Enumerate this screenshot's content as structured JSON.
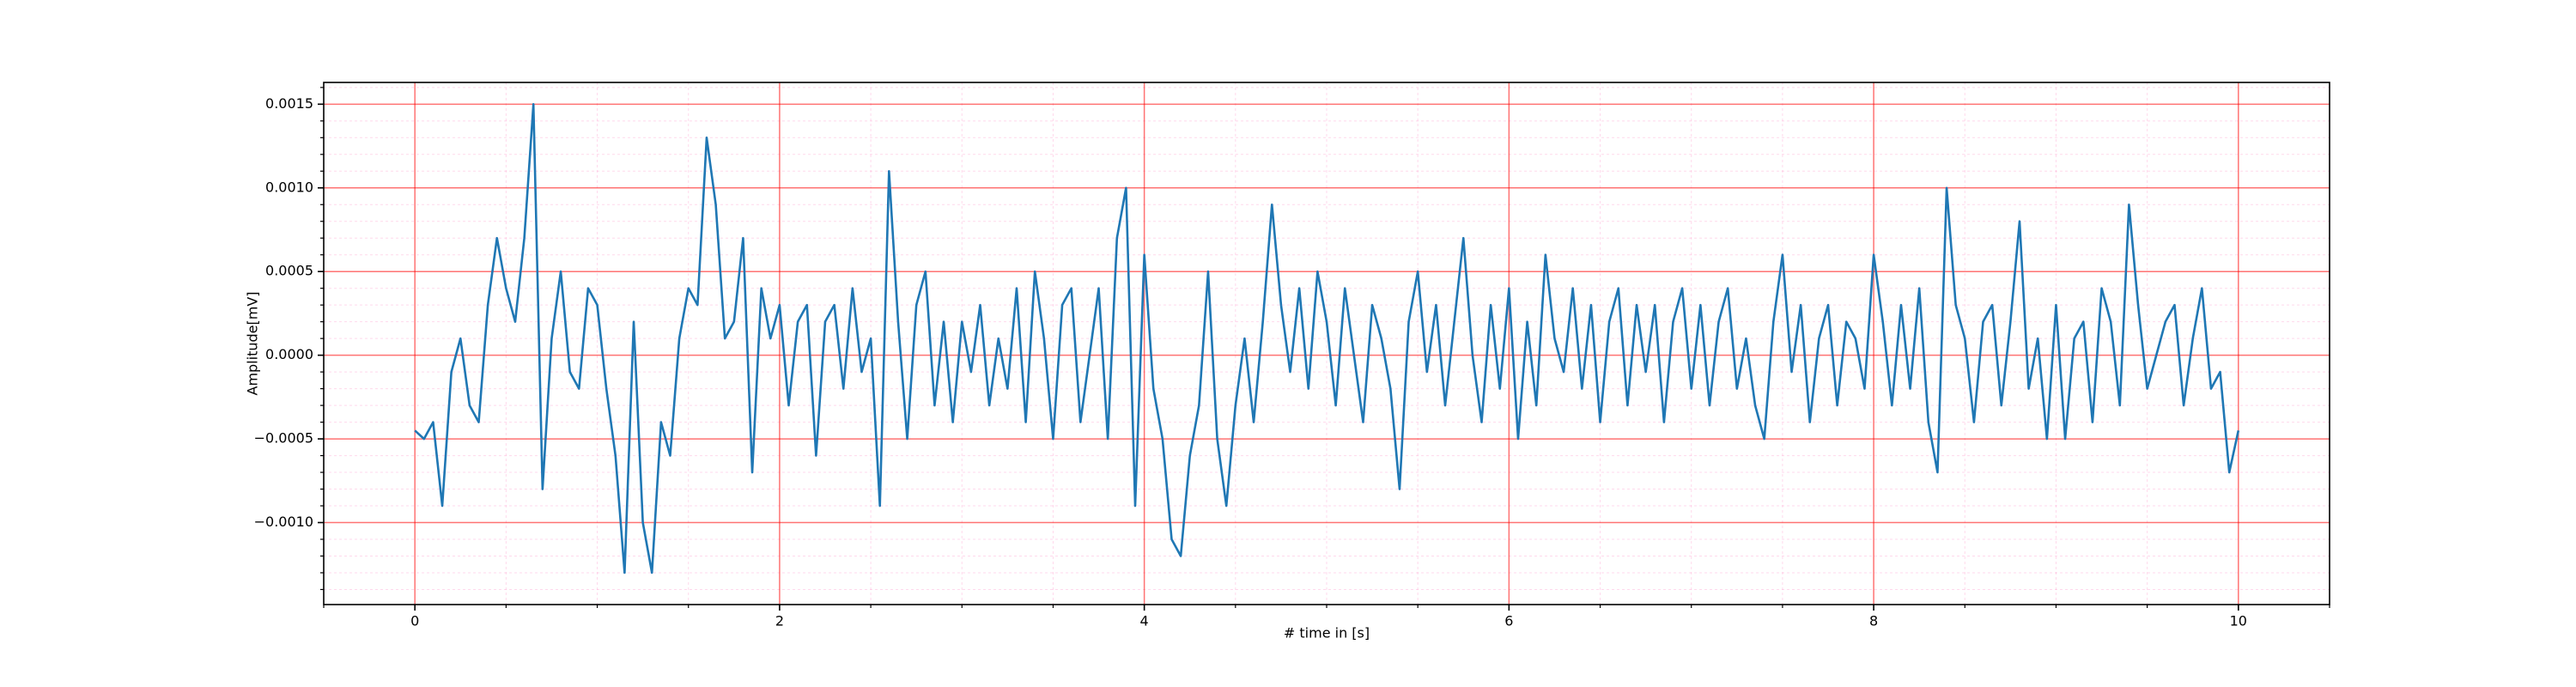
{
  "chart_data": {
    "type": "line",
    "x_label": "# time in [s]",
    "y_label": "Amplitude[mV]",
    "xlim": [
      -0.5,
      10.5
    ],
    "xticks": [
      0,
      2,
      4,
      6,
      8,
      10
    ],
    "xminor_ticks": [
      -0.5,
      0.5,
      1,
      1.5,
      2.5,
      3,
      3.5,
      4.5,
      5,
      5.5,
      6.5,
      7,
      7.5,
      8.5,
      9,
      9.5,
      10.5
    ],
    "ylim": [
      -0.00149,
      0.00163
    ],
    "yticks": [
      {
        "value": -0.001,
        "label": "−0.0010"
      },
      {
        "value": -0.0005,
        "label": "−0.0005"
      },
      {
        "value": 0,
        "label": "0.0000"
      },
      {
        "value": 0.0005,
        "label": "0.0005"
      },
      {
        "value": 0.001,
        "label": "0.0010"
      },
      {
        "value": 0.0015,
        "label": "0.0015"
      }
    ],
    "yminor_ticks": [
      -0.0014,
      -0.0013,
      -0.0012,
      -0.0011,
      -0.0009,
      -0.0008,
      -0.0007,
      -0.0006,
      -0.0004,
      -0.0003,
      -0.0002,
      -0.0001,
      0.0001,
      0.0002,
      0.0003,
      0.0004,
      0.0006,
      0.0007,
      0.0008,
      0.0009,
      0.0011,
      0.0012,
      0.0013,
      0.0014,
      0.0016
    ],
    "grid": true,
    "grid_color": "#ff0000",
    "minor_grid_color": "#ff69b4",
    "x": [
      0,
      0.05,
      0.1,
      0.15,
      0.2,
      0.25,
      0.3,
      0.35,
      0.4,
      0.45,
      0.5,
      0.55,
      0.6,
      0.65,
      0.7,
      0.75,
      0.8,
      0.85,
      0.9,
      0.95,
      1,
      1.05,
      1.1,
      1.15,
      1.2,
      1.25,
      1.3,
      1.35,
      1.4,
      1.45,
      1.5,
      1.55,
      1.6,
      1.65,
      1.7,
      1.75,
      1.8,
      1.85,
      1.9,
      1.95,
      2,
      2.05,
      2.1,
      2.15,
      2.2,
      2.25,
      2.3,
      2.35,
      2.4,
      2.45,
      2.5,
      2.55,
      2.6,
      2.65,
      2.7,
      2.75,
      2.8,
      2.85,
      2.9,
      2.95,
      3,
      3.05,
      3.1,
      3.15,
      3.2,
      3.25,
      3.3,
      3.35,
      3.4,
      3.45,
      3.5,
      3.55,
      3.6,
      3.65,
      3.7,
      3.75,
      3.8,
      3.85,
      3.9,
      3.95,
      4,
      4.05,
      4.1,
      4.15,
      4.2,
      4.25,
      4.3,
      4.35,
      4.4,
      4.45,
      4.5,
      4.55,
      4.6,
      4.65,
      4.7,
      4.75,
      4.8,
      4.85,
      4.9,
      4.95,
      5,
      5.05,
      5.1,
      5.15,
      5.2,
      5.25,
      5.3,
      5.35,
      5.4,
      5.45,
      5.5,
      5.55,
      5.6,
      5.65,
      5.7,
      5.75,
      5.8,
      5.85,
      5.9,
      5.95,
      6,
      6.05,
      6.1,
      6.15,
      6.2,
      6.25,
      6.3,
      6.35,
      6.4,
      6.45,
      6.5,
      6.55,
      6.6,
      6.65,
      6.7,
      6.75,
      6.8,
      6.85,
      6.9,
      6.95,
      7,
      7.05,
      7.1,
      7.15,
      7.2,
      7.25,
      7.3,
      7.35,
      7.4,
      7.45,
      7.5,
      7.55,
      7.6,
      7.65,
      7.7,
      7.75,
      7.8,
      7.85,
      7.9,
      7.95,
      8,
      8.05,
      8.1,
      8.15,
      8.2,
      8.25,
      8.3,
      8.35,
      8.4,
      8.45,
      8.5,
      8.55,
      8.6,
      8.65,
      8.7,
      8.75,
      8.8,
      8.85,
      8.9,
      8.95,
      9,
      9.05,
      9.1,
      9.15,
      9.2,
      9.25,
      9.3,
      9.35,
      9.4,
      9.45,
      9.5,
      9.55,
      9.6,
      9.65,
      9.7,
      9.75,
      9.8,
      9.85,
      9.9,
      9.95,
      10
    ],
    "series": [
      {
        "color": "#1f77b4",
        "values": [
          -0.00045,
          -0.0005,
          -0.0004,
          -0.0009,
          -0.0001,
          0.0001,
          -0.0003,
          -0.0004,
          0.0003,
          0.0007,
          0.0004,
          0.0002,
          0.0007,
          0.0015,
          -0.0008,
          0.0001,
          0.0005,
          -0.0001,
          -0.0002,
          0.0004,
          0.0003,
          -0.0002,
          -0.0006,
          -0.0013,
          0.0002,
          -0.001,
          -0.0013,
          -0.0004,
          -0.0006,
          0.0001,
          0.0004,
          0.0003,
          0.0013,
          0.0009,
          0.0001,
          0.0002,
          0.0007,
          -0.0007,
          0.0004,
          0.0001,
          0.0003,
          -0.0003,
          0.0002,
          0.0003,
          -0.0006,
          0.0002,
          0.0003,
          -0.0002,
          0.0004,
          -0.0001,
          0.0001,
          -0.0009,
          0.0011,
          0.0002,
          -0.0005,
          0.0003,
          0.0005,
          -0.0003,
          0.0002,
          -0.0004,
          0.0002,
          -0.0001,
          0.0003,
          -0.0003,
          0.0001,
          -0.0002,
          0.0004,
          -0.0004,
          0.0005,
          0.0001,
          -0.0005,
          0.0003,
          0.0004,
          -0.0004,
          0,
          0.0004,
          -0.0005,
          0.0007,
          0.001,
          -0.0009,
          0.0006,
          -0.0002,
          -0.0005,
          -0.0011,
          -0.0012,
          -0.0006,
          -0.0003,
          0.0005,
          -0.0005,
          -0.0009,
          -0.0003,
          0.0001,
          -0.0004,
          0.0002,
          0.0009,
          0.0003,
          -0.0001,
          0.0004,
          -0.0002,
          0.0005,
          0.0002,
          -0.0003,
          0.0004,
          0,
          -0.0004,
          0.0003,
          0.0001,
          -0.0002,
          -0.0008,
          0.0002,
          0.0005,
          -0.0001,
          0.0003,
          -0.0003,
          0.0002,
          0.0007,
          0,
          -0.0004,
          0.0003,
          -0.0002,
          0.0004,
          -0.0005,
          0.0002,
          -0.0003,
          0.0006,
          0.0001,
          -0.0001,
          0.0004,
          -0.0002,
          0.0003,
          -0.0004,
          0.0002,
          0.0004,
          -0.0003,
          0.0003,
          -0.0001,
          0.0003,
          -0.0004,
          0.0002,
          0.0004,
          -0.0002,
          0.0003,
          -0.0003,
          0.0002,
          0.0004,
          -0.0002,
          0.0001,
          -0.0003,
          -0.0005,
          0.0002,
          0.0006,
          -0.0001,
          0.0003,
          -0.0004,
          0.0001,
          0.0003,
          -0.0003,
          0.0002,
          0.0001,
          -0.0002,
          0.0006,
          0.0002,
          -0.0003,
          0.0003,
          -0.0002,
          0.0004,
          -0.0004,
          -0.0007,
          0.001,
          0.0003,
          0.0001,
          -0.0004,
          0.0002,
          0.0003,
          -0.0003,
          0.0002,
          0.0008,
          -0.0002,
          0.0001,
          -0.0005,
          0.0003,
          -0.0005,
          0.0001,
          0.0002,
          -0.0004,
          0.0004,
          0.0002,
          -0.0003,
          0.0009,
          0.0003,
          -0.0002,
          0,
          0.0002,
          0.0003,
          -0.0003,
          0.0001,
          0.0004,
          -0.0002,
          -0.0001,
          -0.0007,
          -0.00045
        ]
      }
    ]
  }
}
